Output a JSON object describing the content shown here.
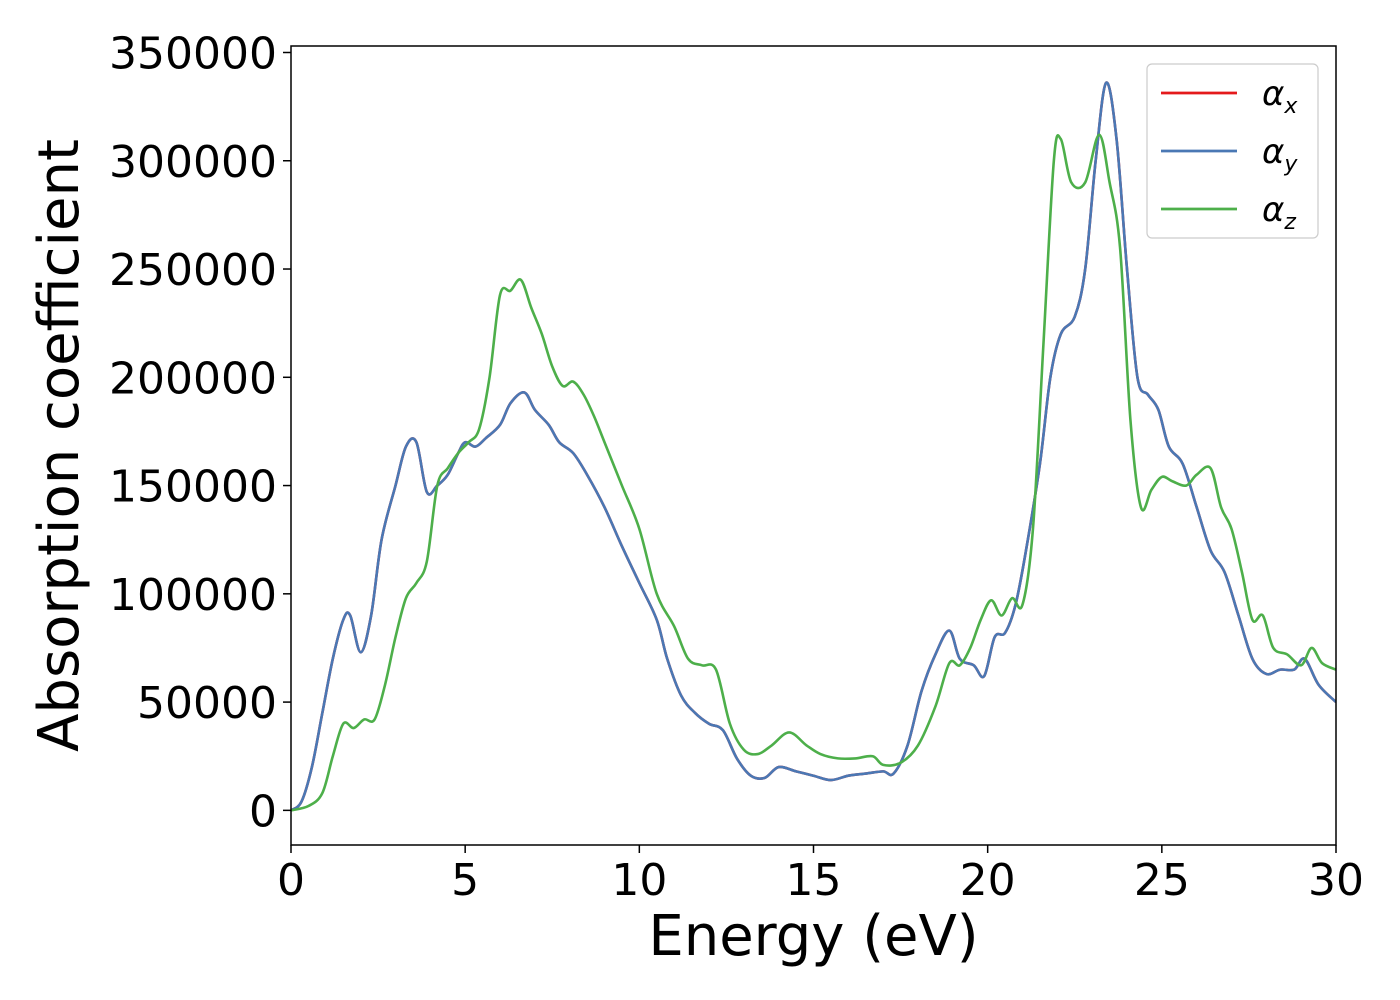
{
  "chart_data": {
    "type": "line",
    "title": "",
    "xlabel": "Energy (eV)",
    "ylabel": "Absorption coefficient",
    "xlim": [
      0,
      30
    ],
    "ylim": [
      -16000,
      353000
    ],
    "x_ticks": [
      0,
      5,
      10,
      15,
      20,
      25,
      30
    ],
    "y_ticks": [
      0,
      50000,
      100000,
      150000,
      200000,
      250000,
      300000,
      350000
    ],
    "x_tick_labels": [
      "0",
      "5",
      "10",
      "15",
      "20",
      "25",
      "30"
    ],
    "y_tick_labels": [
      "0",
      "50000",
      "100000",
      "150000",
      "200000",
      "250000",
      "300000",
      "350000"
    ],
    "grid": false,
    "legend_position": "top-right",
    "series": [
      {
        "name": "α_x",
        "symbol": "α",
        "subscript": "x",
        "color": "#e41a1c",
        "x": [
          0,
          0.3,
          0.6,
          0.9,
          1.2,
          1.5,
          1.7,
          2.0,
          2.3,
          2.6,
          3.0,
          3.3,
          3.6,
          3.9,
          4.2,
          4.5,
          4.8,
          5.0,
          5.3,
          5.6,
          6.0,
          6.3,
          6.7,
          7.0,
          7.4,
          7.7,
          8.1,
          8.5,
          9.0,
          9.5,
          10.0,
          10.5,
          10.8,
          11.2,
          11.6,
          12.0,
          12.4,
          12.8,
          13.2,
          13.6,
          14.0,
          14.5,
          15.0,
          15.5,
          16.0,
          16.5,
          17.0,
          17.3,
          17.7,
          18.1,
          18.5,
          18.9,
          19.2,
          19.6,
          19.9,
          20.2,
          20.5,
          20.8,
          21.1,
          21.5,
          21.8,
          22.1,
          22.5,
          22.8,
          23.1,
          23.4,
          23.7,
          24.0,
          24.3,
          24.6,
          24.9,
          25.2,
          25.6,
          26.0,
          26.4,
          26.8,
          27.2,
          27.6,
          28.0,
          28.4,
          28.8,
          29.1,
          29.5,
          30.0
        ],
        "y": [
          0,
          4000,
          20000,
          45000,
          70000,
          88000,
          90000,
          73000,
          90000,
          125000,
          150000,
          168000,
          170000,
          147000,
          150000,
          155000,
          165000,
          170000,
          168000,
          172000,
          178000,
          188000,
          193000,
          185000,
          178000,
          170000,
          165000,
          155000,
          140000,
          122000,
          105000,
          88000,
          70000,
          53000,
          45000,
          40000,
          37000,
          24000,
          16000,
          15000,
          20000,
          18000,
          16000,
          14000,
          16000,
          17000,
          18000,
          17000,
          30000,
          55000,
          72000,
          83000,
          70000,
          67000,
          62000,
          80000,
          82000,
          95000,
          120000,
          160000,
          200000,
          220000,
          228000,
          250000,
          300000,
          336000,
          310000,
          250000,
          200000,
          192000,
          185000,
          168000,
          160000,
          140000,
          120000,
          110000,
          90000,
          70000,
          63000,
          65000,
          65000,
          70000,
          58000,
          50000
        ]
      },
      {
        "name": "α_y",
        "symbol": "α",
        "subscript": "y",
        "color": "#4a78b4",
        "x": [
          0,
          0.3,
          0.6,
          0.9,
          1.2,
          1.5,
          1.7,
          2.0,
          2.3,
          2.6,
          3.0,
          3.3,
          3.6,
          3.9,
          4.2,
          4.5,
          4.8,
          5.0,
          5.3,
          5.6,
          6.0,
          6.3,
          6.7,
          7.0,
          7.4,
          7.7,
          8.1,
          8.5,
          9.0,
          9.5,
          10.0,
          10.5,
          10.8,
          11.2,
          11.6,
          12.0,
          12.4,
          12.8,
          13.2,
          13.6,
          14.0,
          14.5,
          15.0,
          15.5,
          16.0,
          16.5,
          17.0,
          17.3,
          17.7,
          18.1,
          18.5,
          18.9,
          19.2,
          19.6,
          19.9,
          20.2,
          20.5,
          20.8,
          21.1,
          21.5,
          21.8,
          22.1,
          22.5,
          22.8,
          23.1,
          23.4,
          23.7,
          24.0,
          24.3,
          24.6,
          24.9,
          25.2,
          25.6,
          26.0,
          26.4,
          26.8,
          27.2,
          27.6,
          28.0,
          28.4,
          28.8,
          29.1,
          29.5,
          30.0
        ],
        "y": [
          0,
          4000,
          20000,
          45000,
          70000,
          88000,
          90000,
          73000,
          90000,
          125000,
          150000,
          168000,
          170000,
          147000,
          150000,
          155000,
          165000,
          170000,
          168000,
          172000,
          178000,
          188000,
          193000,
          185000,
          178000,
          170000,
          165000,
          155000,
          140000,
          122000,
          105000,
          88000,
          70000,
          53000,
          45000,
          40000,
          37000,
          24000,
          16000,
          15000,
          20000,
          18000,
          16000,
          14000,
          16000,
          17000,
          18000,
          17000,
          30000,
          55000,
          72000,
          83000,
          70000,
          67000,
          62000,
          80000,
          82000,
          95000,
          120000,
          160000,
          200000,
          220000,
          228000,
          250000,
          300000,
          336000,
          310000,
          250000,
          200000,
          192000,
          185000,
          168000,
          160000,
          140000,
          120000,
          110000,
          90000,
          70000,
          63000,
          65000,
          65000,
          70000,
          58000,
          50000
        ]
      },
      {
        "name": "α_z",
        "symbol": "α",
        "subscript": "z",
        "color": "#4daf4a",
        "x": [
          0,
          0.5,
          0.9,
          1.2,
          1.5,
          1.8,
          2.1,
          2.4,
          2.7,
          3.0,
          3.3,
          3.6,
          3.9,
          4.2,
          4.5,
          4.8,
          5.1,
          5.4,
          5.7,
          6.0,
          6.3,
          6.6,
          6.9,
          7.2,
          7.5,
          7.8,
          8.1,
          8.4,
          8.7,
          9.0,
          9.5,
          10.0,
          10.5,
          11.0,
          11.4,
          11.8,
          12.2,
          12.6,
          13.0,
          13.4,
          13.8,
          14.3,
          14.8,
          15.2,
          15.7,
          16.2,
          16.7,
          17.0,
          17.5,
          18.0,
          18.5,
          18.9,
          19.2,
          19.5,
          19.8,
          20.1,
          20.4,
          20.7,
          21.0,
          21.3,
          21.6,
          21.9,
          22.1,
          22.4,
          22.8,
          23.2,
          23.5,
          23.8,
          24.1,
          24.4,
          24.7,
          25.0,
          25.3,
          25.7,
          26.0,
          26.4,
          26.7,
          27.0,
          27.3,
          27.6,
          27.9,
          28.2,
          28.6,
          29.0,
          29.3,
          29.6,
          30.0
        ],
        "y": [
          0,
          2000,
          8000,
          25000,
          40000,
          38000,
          42000,
          42000,
          58000,
          80000,
          98000,
          105000,
          115000,
          150000,
          158000,
          165000,
          170000,
          176000,
          200000,
          238000,
          240000,
          245000,
          232000,
          220000,
          205000,
          196000,
          198000,
          192000,
          182000,
          170000,
          150000,
          130000,
          100000,
          85000,
          70000,
          67000,
          65000,
          40000,
          28000,
          26000,
          30000,
          36000,
          30000,
          26000,
          24000,
          24000,
          25000,
          21000,
          22000,
          30000,
          48000,
          68000,
          67000,
          75000,
          88000,
          97000,
          90000,
          98000,
          95000,
          130000,
          215000,
          300000,
          310000,
          290000,
          290000,
          312000,
          290000,
          260000,
          180000,
          140000,
          148000,
          154000,
          152000,
          150000,
          155000,
          158000,
          140000,
          130000,
          110000,
          88000,
          90000,
          75000,
          72000,
          67000,
          75000,
          68000,
          65000
        ]
      }
    ]
  }
}
